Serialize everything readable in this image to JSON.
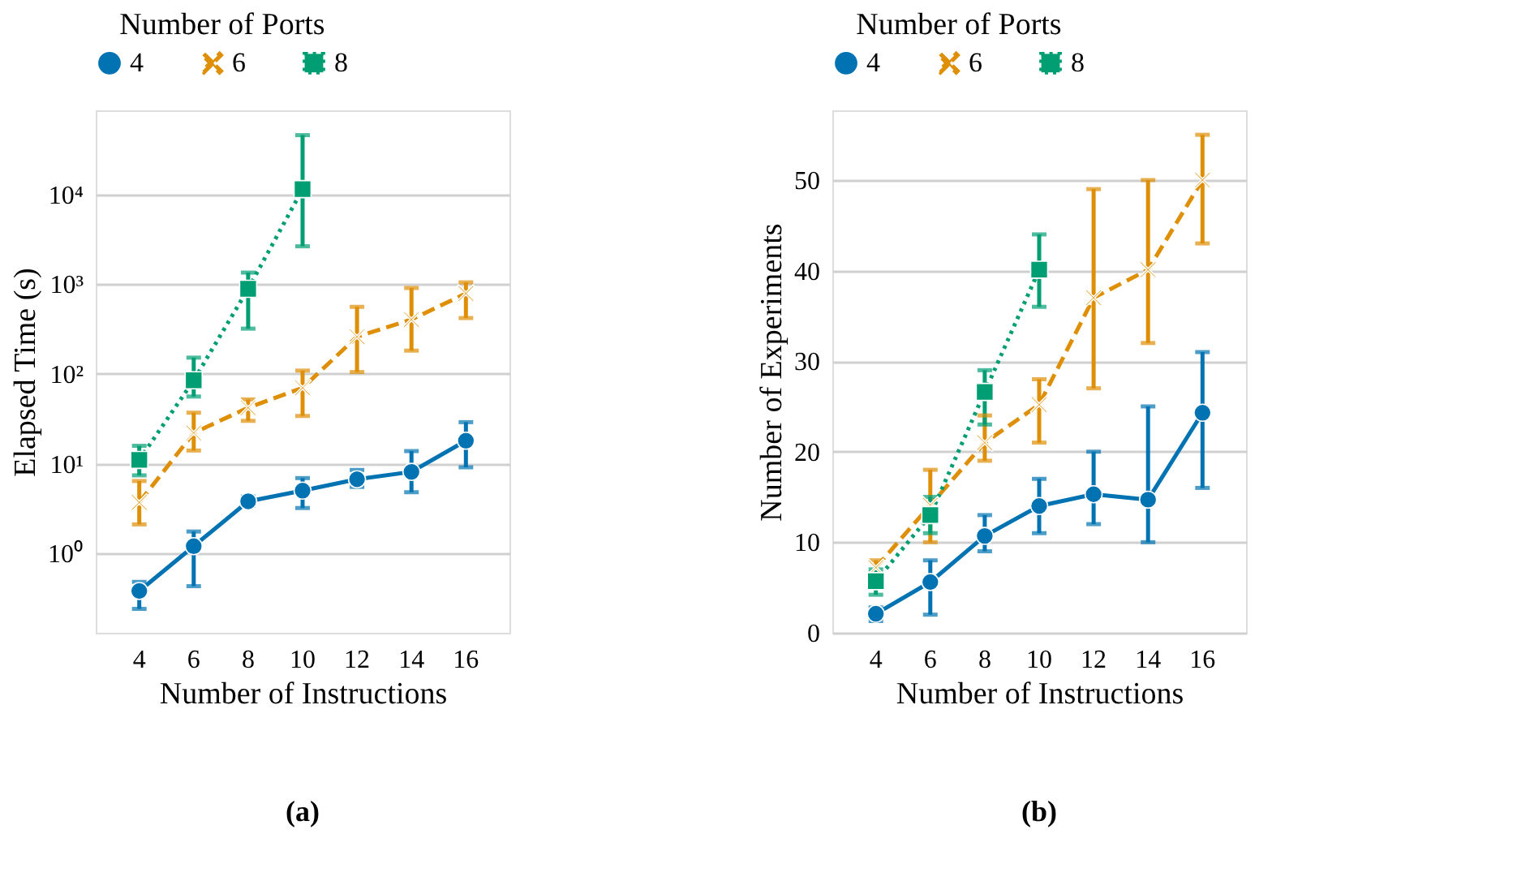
{
  "chart_data": [
    {
      "type": "line",
      "xlabel": "Number of Instructions",
      "ylabel": "Elapsed Time (s)",
      "legend_title": "Number of Ports",
      "legend": "top",
      "grid": "y",
      "log": "y",
      "categories": [
        "4",
        "6",
        "8",
        "10",
        "12",
        "14",
        "16"
      ],
      "ylim": [
        0.13,
        87000
      ],
      "yticks": [
        {
          "value": 1,
          "label": "10⁰"
        },
        {
          "value": 10,
          "label": "10¹"
        },
        {
          "value": 100,
          "label": "10²"
        },
        {
          "value": 1000,
          "label": "10³"
        },
        {
          "value": 10000,
          "label": "10⁴"
        }
      ],
      "series": [
        {
          "name": "4",
          "color": "#0173b2",
          "marker": "circle",
          "line_style": "solid",
          "values": [
            0.38,
            1.2,
            3.8,
            5.0,
            6.7,
            8.1,
            18
          ],
          "errors": [
            [
              0.24,
              0.48
            ],
            [
              0.43,
              1.75
            ],
            [
              3.4,
              4.3
            ],
            [
              3.2,
              6.9
            ],
            [
              5.5,
              8.5
            ],
            [
              4.8,
              13.8
            ],
            [
              9.1,
              29
            ]
          ]
        },
        {
          "name": "6",
          "color": "#de8f05",
          "marker": "cross",
          "line_style": "dashed",
          "values": [
            3.7,
            22,
            42,
            70,
            260,
            405,
            790
          ],
          "errors": [
            [
              2.1,
              6.4
            ],
            [
              14,
              37
            ],
            [
              30,
              52
            ],
            [
              34,
              109
            ],
            [
              105,
              560
            ],
            [
              182,
              910
            ],
            [
              420,
              1050
            ]
          ]
        },
        {
          "name": "8",
          "color": "#029e73",
          "marker": "square",
          "line_style": "dotted",
          "values": [
            11,
            85,
            890,
            11500,
            null,
            null,
            null
          ],
          "errors": [
            [
              7.4,
              15.8
            ],
            [
              56,
              152
            ],
            [
              320,
              1350
            ],
            [
              2650,
              46000
            ],
            null,
            null,
            null
          ]
        }
      ],
      "annotations": [
        "(a)"
      ]
    },
    {
      "type": "line",
      "xlabel": "Number of Instructions",
      "ylabel": "Number of Experiments",
      "legend_title": "Number of Ports",
      "legend": "top",
      "grid": "y",
      "categories": [
        "4",
        "6",
        "8",
        "10",
        "12",
        "14",
        "16"
      ],
      "ylim": [
        0,
        57.7
      ],
      "yticks": [
        0,
        10,
        20,
        30,
        40,
        50
      ],
      "series": [
        {
          "name": "4",
          "color": "#0173b2",
          "marker": "circle",
          "line_style": "solid",
          "values": [
            2.1,
            5.6,
            10.7,
            14,
            15.3,
            14.7,
            24.3
          ],
          "errors": [
            [
              1.3,
              2.8
            ],
            [
              2,
              8
            ],
            [
              9,
              13
            ],
            [
              11,
              17
            ],
            [
              12,
              20
            ],
            [
              10,
              25
            ],
            [
              16,
              31
            ]
          ]
        },
        {
          "name": "6",
          "color": "#de8f05",
          "marker": "cross",
          "line_style": "dashed",
          "values": [
            7.2,
            14.1,
            21,
            25.2,
            37,
            40.1,
            50
          ],
          "errors": [
            [
              6.5,
              8
            ],
            [
              10,
              18
            ],
            [
              19,
              24
            ],
            [
              21,
              28
            ],
            [
              27,
              49
            ],
            [
              32,
              50
            ],
            [
              43,
              55
            ]
          ]
        },
        {
          "name": "8",
          "color": "#029e73",
          "marker": "square",
          "line_style": "dotted",
          "values": [
            5.7,
            13,
            26.6,
            40.1,
            null,
            null,
            null
          ],
          "errors": [
            [
              4.2,
              7
            ],
            [
              11,
              15
            ],
            [
              23,
              29
            ],
            [
              36,
              44
            ],
            null,
            null,
            null
          ]
        }
      ],
      "annotations": [
        "(b)"
      ]
    }
  ]
}
